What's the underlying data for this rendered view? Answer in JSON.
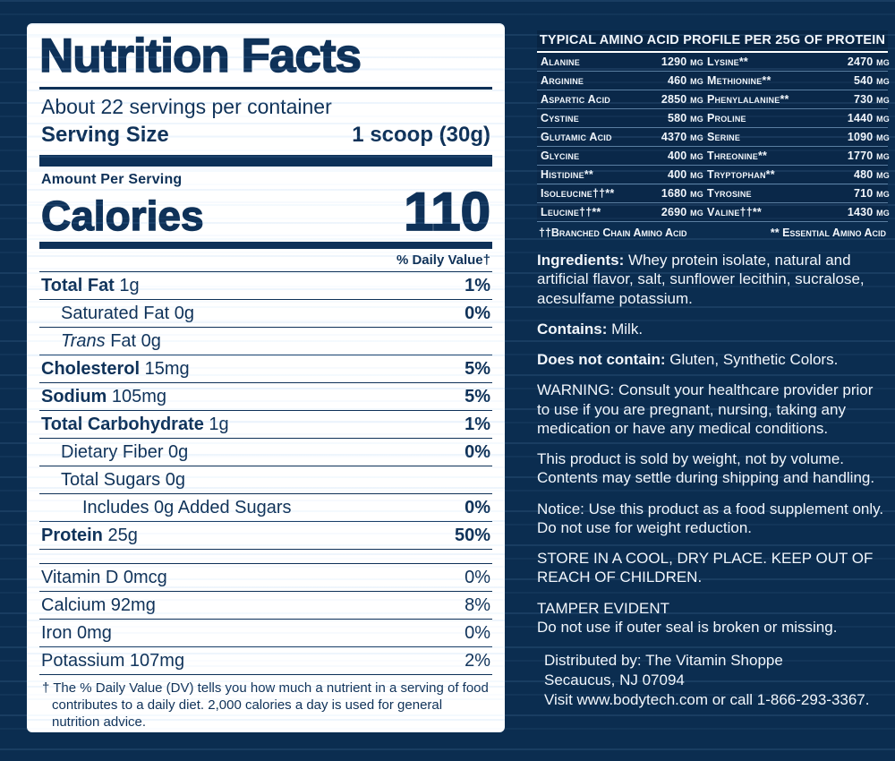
{
  "label": {
    "title": "Nutrition Facts",
    "servings": "About 22 servings per container",
    "serving_size_label": "Serving Size",
    "serving_size_value": "1 scoop (30g)",
    "amount_per_serving": "Amount Per Serving",
    "calories_label": "Calories",
    "calories_value": "110",
    "daily_value_header": "% Daily Value†",
    "rows": [
      {
        "b": "Total Fat",
        "t": " 1g",
        "v": "1%"
      },
      {
        "t": "Saturated Fat 0g",
        "v": "0%"
      },
      {
        "i": "Trans",
        "t": " Fat 0g",
        "v": ""
      },
      {
        "b": "Cholesterol",
        "t": " 15mg",
        "v": "5%"
      },
      {
        "b": "Sodium",
        "t": " 105mg",
        "v": "5%"
      },
      {
        "b": "Total Carbohydrate",
        "t": " 1g",
        "v": "1%"
      },
      {
        "t": "Dietary Fiber 0g",
        "v": "0%"
      },
      {
        "t": "Total Sugars 0g",
        "v": ""
      },
      {
        "t": "Includes 0g Added Sugars",
        "v": "0%"
      },
      {
        "b": "Protein",
        "t": " 25g",
        "v": "50%"
      }
    ],
    "vitamins": [
      {
        "t": "Vitamin D 0mcg",
        "v": "0%"
      },
      {
        "t": "Calcium 92mg",
        "v": "8%"
      },
      {
        "t": "Iron 0mg",
        "v": "0%"
      },
      {
        "t": "Potassium 107mg",
        "v": "2%"
      }
    ],
    "footnote": "† The % Daily Value (DV) tells you how much a nutrient in a serving of food contributes to a daily diet. 2,000 calories a day is used for general nutrition advice."
  },
  "amino": {
    "title": "TYPICAL AMINO ACID PROFILE PER 25G OF PROTEIN",
    "rows": [
      {
        "n1": "Alanine",
        "v1": "1290 mg",
        "n2": "Lysine**",
        "v2": "2470 mg"
      },
      {
        "n1": "Arginine",
        "v1": "460 mg",
        "n2": "Methionine**",
        "v2": "540 mg"
      },
      {
        "n1": "Aspartic Acid",
        "v1": "2850 mg",
        "n2": "Phenylalanine**",
        "v2": "730 mg"
      },
      {
        "n1": "Cystine",
        "v1": "580 mg",
        "n2": "Proline",
        "v2": "1440 mg"
      },
      {
        "n1": "Glutamic Acid",
        "v1": "4370 mg",
        "n2": "Serine",
        "v2": "1090 mg"
      },
      {
        "n1": "Glycine",
        "v1": "400 mg",
        "n2": "Threonine**",
        "v2": "1770 mg"
      },
      {
        "n1": "Histidine**",
        "v1": "400 mg",
        "n2": "Tryptophan**",
        "v2": "480 mg"
      },
      {
        "n1": "Isoleucine††**",
        "v1": "1680 mg",
        "n2": "Tyrosine",
        "v2": "710 mg"
      },
      {
        "n1": "Leucine††**",
        "v1": "2690 mg",
        "n2": "Valine††**",
        "v2": "1430 mg"
      }
    ],
    "legend_bcaa": "††Branched Chain Amino Acid",
    "legend_eaa": "** Essential Amino Acid"
  },
  "info": {
    "ingredients_label": "Ingredients:",
    "ingredients_text": " Whey protein isolate, natural and artificial flavor, salt, sunflower lecithin, sucralose, acesulfame potassium.",
    "contains_label": "Contains:",
    "contains_text": " Milk.",
    "dnc_label": "Does not contain:",
    "dnc_text": " Gluten, Synthetic Colors.",
    "warning": "WARNING: Consult your healthcare provider prior to use if you are pregnant, nursing, taking any medication or have any medical conditions.",
    "sold_by_weight": "This product is sold by weight, not by volume. Contents may settle during shipping and handling.",
    "notice": "Notice: Use this product as a food supplement only. Do not use for weight reduction.",
    "storage": "STORE IN A COOL, DRY PLACE. KEEP OUT OF REACH OF CHILDREN.",
    "tamper_title": "TAMPER EVIDENT",
    "tamper_text": "Do not use if outer seal is broken or missing.",
    "distributed1": "Distributed by: The Vitamin Shoppe",
    "distributed2": "Secaucus, NJ 07094",
    "distributed3": "Visit www.bodytech.com or call 1-866-293-3367."
  },
  "colors": {
    "navy": "#0e3158",
    "background": "#0b2d50",
    "label_bg": "#ffffff",
    "right_text": "#f3f7fc"
  }
}
